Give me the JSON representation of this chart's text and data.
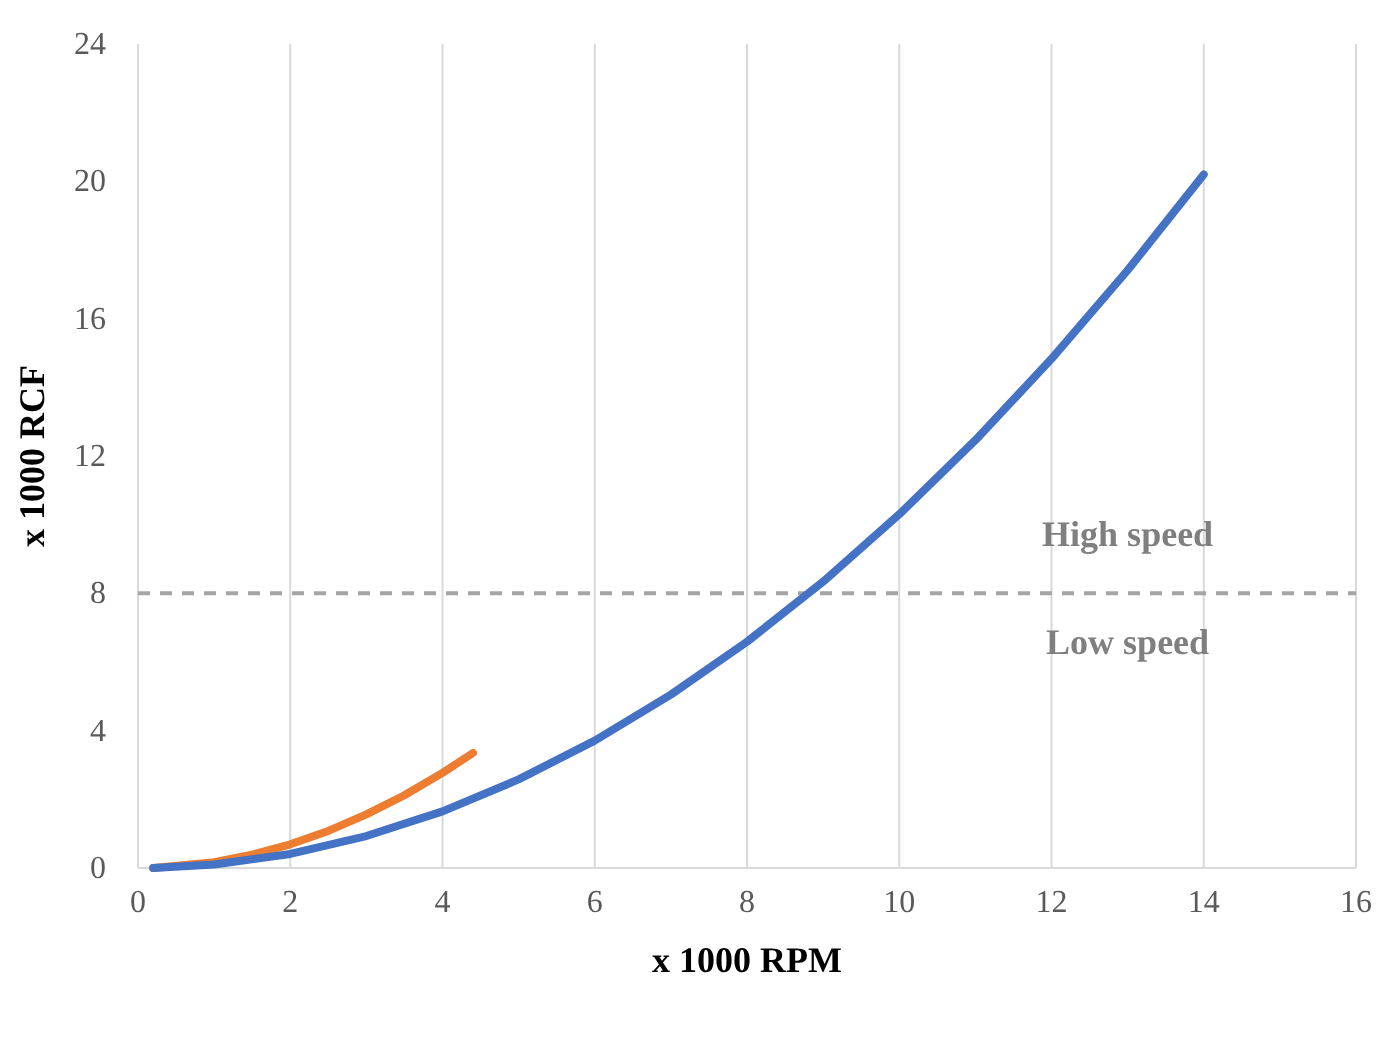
{
  "chart_data": {
    "type": "line",
    "xlabel": "x 1000 RPM",
    "ylabel": "x 1000 RCF",
    "xlim": [
      0,
      16
    ],
    "xticks": [
      0,
      2,
      4,
      6,
      8,
      10,
      12,
      14,
      16
    ],
    "ylim": [
      0,
      24
    ],
    "yticks": [
      0,
      4,
      8,
      12,
      16,
      20,
      24
    ],
    "grid": "x",
    "marker": "none",
    "line_style": "solid",
    "series": [
      {
        "color": "#ed7d31",
        "x": [
          0.2,
          1,
          1.5,
          2,
          2.5,
          3,
          3.5,
          4,
          4.4
        ],
        "values": [
          0,
          0.17,
          0.39,
          0.69,
          1.08,
          1.56,
          2.12,
          2.77,
          3.35
        ]
      },
      {
        "color": "#4472c4",
        "x": [
          0.2,
          1,
          2,
          3,
          4,
          5,
          6,
          7,
          8,
          9,
          10,
          11,
          12,
          13,
          14
        ],
        "values": [
          0,
          0.1,
          0.41,
          0.93,
          1.65,
          2.58,
          3.71,
          5.05,
          6.59,
          8.34,
          10.3,
          12.46,
          14.83,
          17.41,
          20.2
        ]
      }
    ],
    "ref_lines": [
      {
        "axis": "y",
        "value": 8,
        "color": "#a5a5a5",
        "line_style": "dashed"
      }
    ],
    "annotations": [
      "High speed",
      "Low speed"
    ]
  }
}
